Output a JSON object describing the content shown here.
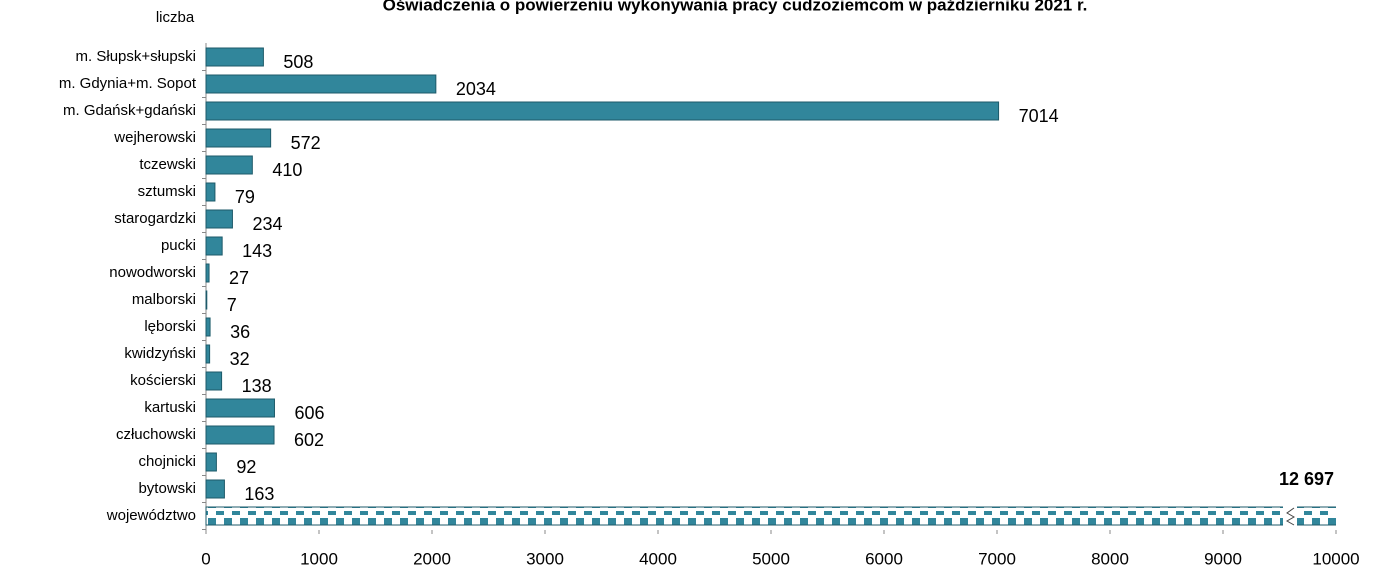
{
  "chart_data": {
    "type": "bar",
    "orientation": "horizontal",
    "title": "Oświadczenia o powierzeniu wykonywania pracy cudzoziemcom w październiku 2021 r.",
    "y_label": "liczba",
    "categories": [
      "m. Słupsk+słupski",
      "m. Gdynia+m. Sopot",
      "m. Gdańsk+gdański",
      "wejherowski",
      "tczewski",
      "sztumski",
      "starogardzki",
      "pucki",
      "nowodworski",
      "malborski",
      "lęborski",
      "kwidzyński",
      "kościerski",
      "kartuski",
      "człuchowski",
      "chojnicki",
      "bytowski",
      "województwo"
    ],
    "values": [
      508,
      2034,
      7014,
      572,
      410,
      79,
      234,
      143,
      27,
      7,
      36,
      32,
      138,
      606,
      602,
      92,
      163,
      12697
    ],
    "value_labels": [
      null,
      null,
      null,
      null,
      null,
      null,
      null,
      null,
      null,
      null,
      null,
      null,
      null,
      null,
      null,
      null,
      null,
      "12 697"
    ],
    "color": "#31869b",
    "xlim": [
      0,
      10000
    ],
    "xticks": [
      0,
      1000,
      2000,
      3000,
      4000,
      5000,
      6000,
      7000,
      8000,
      9000,
      10000
    ],
    "grid": false
  }
}
